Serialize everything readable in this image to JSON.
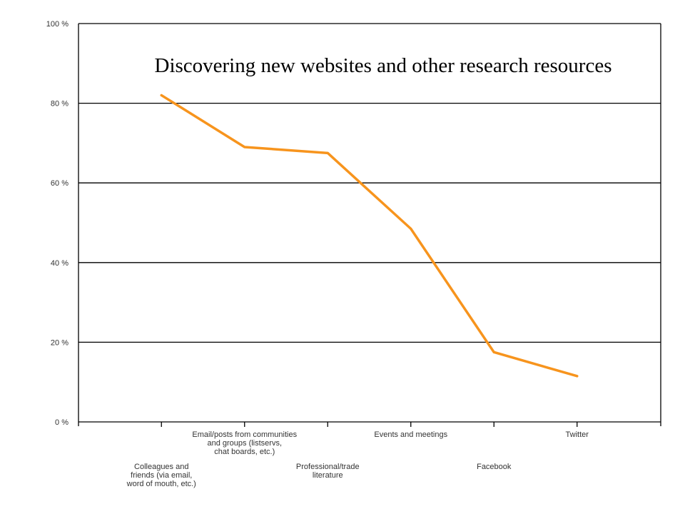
{
  "chart_data": {
    "type": "line",
    "title": "Discovering new websites and other research resources",
    "xlabel": "",
    "ylabel": "",
    "categories": [
      [
        "Colleagues and",
        "friends (via email,",
        "word of mouth, etc.)"
      ],
      [
        "Email/posts from communities",
        "and groups (listservs,",
        "chat boards, etc.)"
      ],
      [
        "Professional/trade",
        "literature"
      ],
      [
        "Events and meetings"
      ],
      [
        "Facebook"
      ],
      [
        "Twitter"
      ]
    ],
    "series": [
      {
        "values": [
          82,
          69,
          67.5,
          48.5,
          17.5,
          11.5
        ]
      }
    ],
    "ylim": [
      0,
      100
    ],
    "yticks": [
      0,
      20,
      40,
      60,
      80,
      100
    ],
    "ytick_labels": [
      "0 %",
      "20 %",
      "40 %",
      "60 %",
      "80 %",
      "100 %"
    ],
    "grid": true,
    "legend": "none",
    "colors": {
      "line": "#f7941d",
      "grid": "#000000",
      "text": "#333333"
    }
  }
}
